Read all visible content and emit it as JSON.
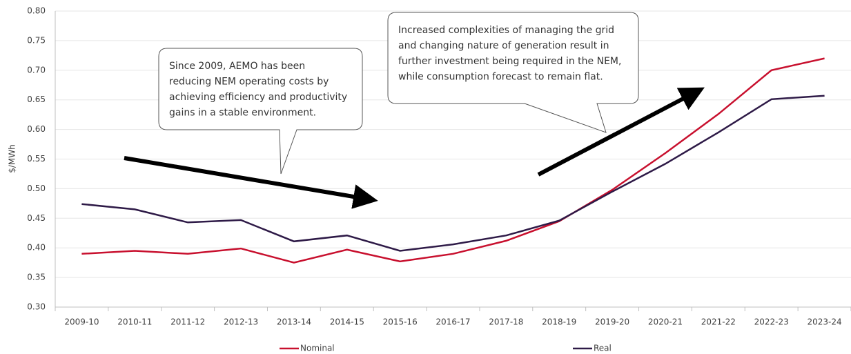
{
  "chart_data": {
    "type": "line",
    "y_axis_label": "$/MWh",
    "categories": [
      "2009-10",
      "2010-11",
      "2011-12",
      "2012-13",
      "2013-14",
      "2014-15",
      "2015-16",
      "2016-17",
      "2017-18",
      "2018-19",
      "2019-20",
      "2020-21",
      "2021-22",
      "2022-23",
      "2023-24"
    ],
    "series": [
      {
        "name": "Nominal",
        "color": "#c8102e",
        "values": [
          0.39,
          0.395,
          0.39,
          0.399,
          0.375,
          0.397,
          0.377,
          0.39,
          0.412,
          0.445,
          0.498,
          0.56,
          0.626,
          0.7,
          0.72
        ]
      },
      {
        "name": "Real",
        "color": "#2e1a47",
        "values": [
          0.474,
          0.465,
          0.443,
          0.447,
          0.411,
          0.421,
          0.395,
          0.406,
          0.421,
          0.446,
          0.495,
          0.542,
          0.595,
          0.651,
          0.657
        ]
      }
    ],
    "ylim": [
      0.3,
      0.8
    ],
    "yticks": [
      {
        "value": 0.3,
        "label": "0.30"
      },
      0.35,
      {
        "value": 0.4,
        "label": "0.40"
      },
      0.45,
      {
        "value": 0.5,
        "label": "0.50"
      },
      0.55,
      {
        "value": 0.6,
        "label": "0.60"
      },
      0.65,
      {
        "value": 0.7,
        "label": "0.70"
      },
      0.75,
      {
        "value": 0.8,
        "label": "0.80"
      }
    ],
    "grid": true,
    "legend": "bottom",
    "annotations": [
      [
        "Since 2009, AEMO has been",
        "reducing NEM operating costs by",
        "achieving efficiency and productivity",
        "gains in a stable environment."
      ],
      [
        "Increased complexities of managing the grid",
        "and changing nature of generation result in",
        "further investment being required in the NEM,",
        "while consumption forecast to remain flat."
      ]
    ]
  }
}
